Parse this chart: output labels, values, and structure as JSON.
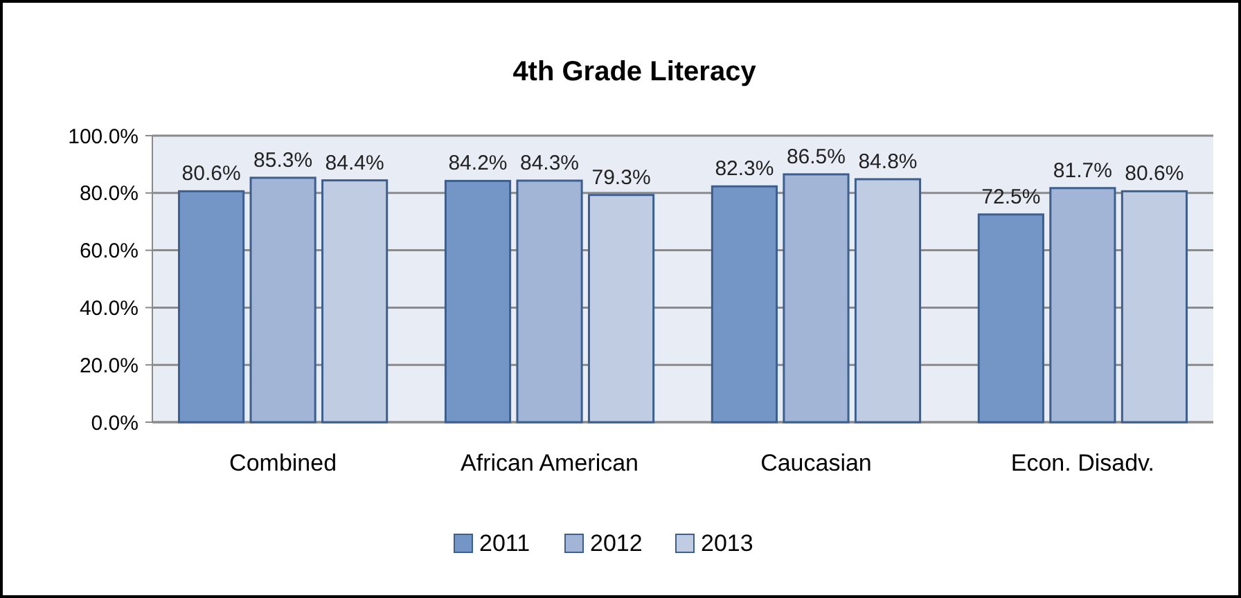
{
  "chart_data": {
    "type": "bar",
    "title": "4th Grade Literacy",
    "categories": [
      "Combined",
      "African American",
      "Caucasian",
      "Econ. Disadv."
    ],
    "series": [
      {
        "name": "2011",
        "color": "#7396c6",
        "values": [
          80.6,
          84.2,
          82.3,
          72.5
        ],
        "value_labels": [
          "80.6%",
          "84.2%",
          "82.3%",
          "72.5%"
        ]
      },
      {
        "name": "2012",
        "color": "#a2b5d6",
        "values": [
          85.3,
          84.3,
          86.5,
          81.7
        ],
        "value_labels": [
          "85.3%",
          "84.3%",
          "86.5%",
          "81.7%"
        ]
      },
      {
        "name": "2013",
        "color": "#c0cce2",
        "values": [
          84.4,
          79.3,
          84.8,
          80.6
        ],
        "value_labels": [
          "84.4%",
          "79.3%",
          "84.8%",
          "80.6%"
        ]
      }
    ],
    "ylim": [
      0,
      100
    ],
    "yticks": [
      {
        "value": 0,
        "label": "0.0%"
      },
      {
        "value": 20,
        "label": "20.0%"
      },
      {
        "value": 40,
        "label": "40.0%"
      },
      {
        "value": 60,
        "label": "60.0%"
      },
      {
        "value": 80,
        "label": "80.0%"
      },
      {
        "value": 100,
        "label": "100.0%"
      }
    ],
    "grid": "y",
    "legend": "bottom"
  }
}
